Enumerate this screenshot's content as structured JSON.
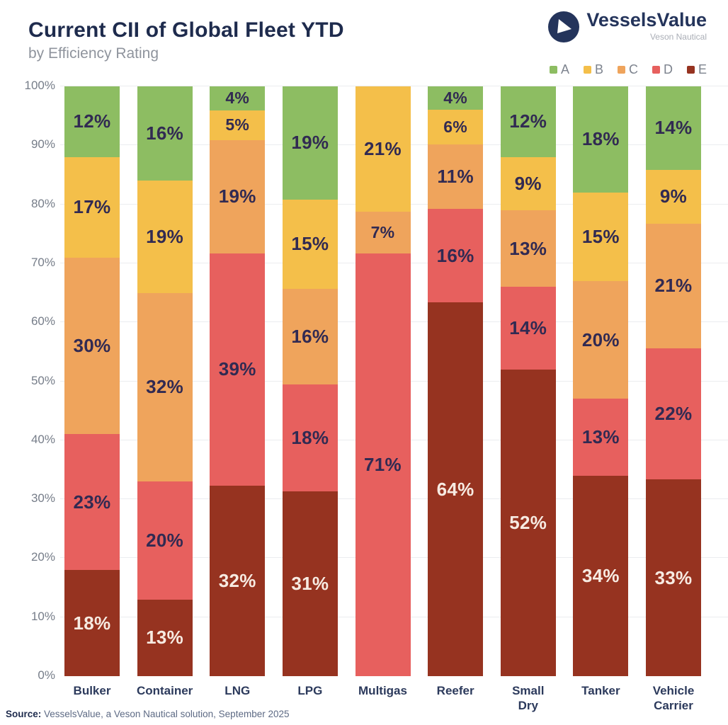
{
  "header": {
    "title": "Current CII of Global Fleet YTD",
    "subtitle": "by Efficiency Rating"
  },
  "logo": {
    "name": "VesselsValue",
    "tagline": "Veson Nautical",
    "mark": "circle-triangle-icon",
    "color": "#24345b"
  },
  "source": {
    "label": "Source:",
    "text": " VesselsValue, a Veson Nautical solution, September 2025"
  },
  "chart_data": {
    "type": "bar",
    "stacked": true,
    "unit": "%",
    "title": "Current CII of Global Fleet YTD",
    "subtitle": "by Efficiency Rating",
    "grid": true,
    "legend_position": "top-right",
    "ylim": [
      0,
      100
    ],
    "yticks": [
      "0%",
      "10%",
      "20%",
      "30%",
      "40%",
      "50%",
      "60%",
      "70%",
      "80%",
      "90%",
      "100%"
    ],
    "categories": [
      "Bulker",
      "Container",
      "LNG",
      "LPG",
      "Multigas",
      "Reefer",
      "Small\nDry",
      "Tanker",
      "Vehicle\nCarrier"
    ],
    "series": [
      {
        "name": "A",
        "color": "#8dbd62",
        "label_style": "dark",
        "values": [
          12,
          16,
          4,
          19,
          0,
          4,
          12,
          18,
          14
        ]
      },
      {
        "name": "B",
        "color": "#f4bf4a",
        "label_style": "dark",
        "values": [
          17,
          19,
          5,
          15,
          21,
          6,
          9,
          15,
          9
        ]
      },
      {
        "name": "C",
        "color": "#efa45c",
        "label_style": "dark",
        "values": [
          30,
          32,
          19,
          16,
          7,
          11,
          13,
          20,
          21
        ]
      },
      {
        "name": "D",
        "color": "#e7605e",
        "label_style": "dark",
        "values": [
          23,
          20,
          39,
          18,
          71,
          16,
          14,
          13,
          22
        ]
      },
      {
        "name": "E",
        "color": "#963320",
        "label_style": "light",
        "values": [
          18,
          13,
          32,
          31,
          0,
          64,
          52,
          34,
          33
        ]
      }
    ],
    "label_colors": {
      "dark": "#312a52",
      "light": "#f7ebe2"
    },
    "gridline_color": "#ebedef"
  }
}
